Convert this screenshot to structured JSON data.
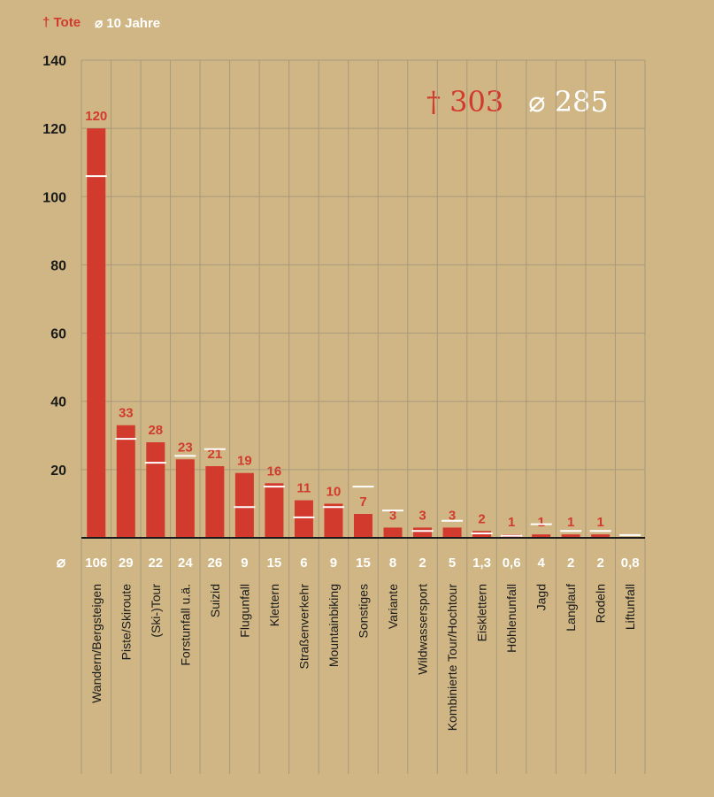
{
  "legend": {
    "tote_label": "† Tote",
    "avg_label": "⌀ 10 Jahre"
  },
  "totals": {
    "tote": "† 303",
    "avg": "⌀ 285"
  },
  "avg_row_symbol": "⌀",
  "colors": {
    "background": "#cfb684",
    "bar": "#d23a2e",
    "avg_marker": "#ffffff",
    "grid": "#a8997c",
    "axis_text": "#1a1a1a"
  },
  "chart_data": {
    "type": "bar",
    "title": "",
    "xlabel": "",
    "ylabel": "",
    "ylim": [
      0,
      140
    ],
    "yticks": [
      20,
      40,
      60,
      80,
      100,
      120,
      140
    ],
    "grid": true,
    "legend_position": "top-left",
    "categories": [
      "Wandern/Bergsteigen",
      "Piste/Skiroute",
      "(Ski-)Tour",
      "Forstunfall u.ä.",
      "Suizid",
      "Flugunfall",
      "Klettern",
      "Straßenverkehr",
      "Mountainbiking",
      "Sonstiges",
      "Variante",
      "Wildwassersport",
      "Kombinierte Tour/Hochtour",
      "Eisklettern",
      "Höhlenunfall",
      "Jagd",
      "Langlauf",
      "Rodeln",
      "Liftunfall"
    ],
    "series": [
      {
        "name": "Tote",
        "values": [
          120,
          33,
          28,
          23,
          21,
          19,
          16,
          11,
          10,
          7,
          3,
          3,
          3,
          2,
          1,
          1,
          1,
          1,
          0
        ]
      },
      {
        "name": "⌀ 10 Jahre",
        "values": [
          106,
          29,
          22,
          24,
          26,
          9,
          15,
          6,
          9,
          15,
          8,
          2,
          5,
          1.3,
          0.6,
          4,
          2,
          2,
          0.8
        ]
      }
    ],
    "value_labels": [
      "120",
      "33",
      "28",
      "23",
      "21",
      "19",
      "16",
      "11",
      "10",
      "7",
      "3",
      "3",
      "3",
      "2",
      "1",
      "1",
      "1",
      "1",
      ""
    ],
    "avg_labels": [
      "106",
      "29",
      "22",
      "24",
      "26",
      "9",
      "15",
      "6",
      "9",
      "15",
      "8",
      "2",
      "5",
      "1,3",
      "0,6",
      "4",
      "2",
      "2",
      "0,8"
    ]
  }
}
